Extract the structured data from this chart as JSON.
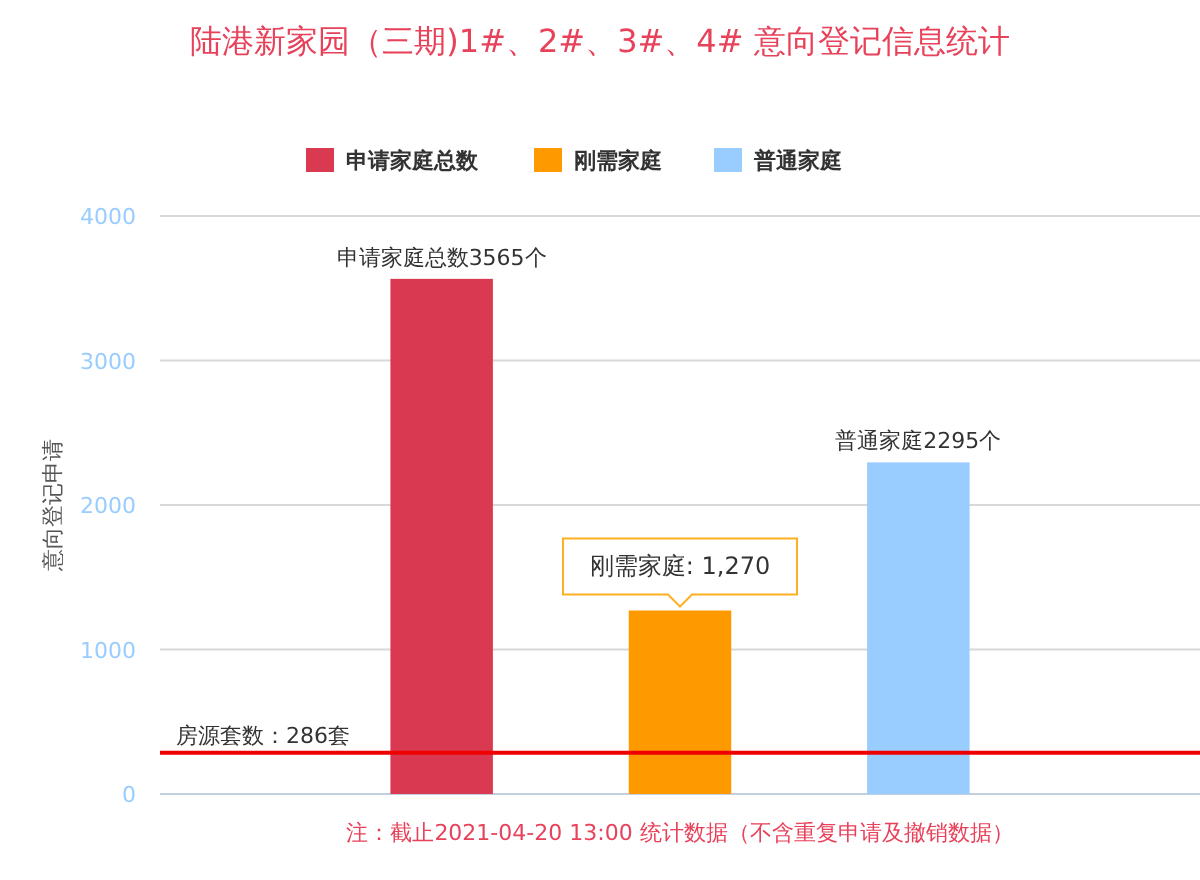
{
  "chart_data": {
    "type": "bar",
    "title": "陆港新家园（三期)1#、2#、3#、4# 意向登记信息统计",
    "ylabel": "意向登记申请",
    "categories": [
      null
    ],
    "series": [
      {
        "name": "申请家庭总数",
        "color": "#d93a52",
        "values": [
          3565
        ],
        "value_labels": [
          "申请家庭总数3565个"
        ]
      },
      {
        "name": "刚需家庭",
        "color": "#ff9900",
        "values": [
          1270
        ],
        "value_labels": [
          null
        ]
      },
      {
        "name": "普通家庭",
        "color": "#99ccff",
        "values": [
          2295
        ],
        "value_labels": [
          "普通家庭2295个"
        ]
      }
    ],
    "ylim": [
      0,
      4000
    ],
    "yticks": [
      0,
      1000,
      2000,
      3000,
      4000
    ],
    "grid": "y",
    "legend": "top",
    "ref_lines": [
      {
        "axis": "y",
        "value": 286,
        "label": "房源套数：286套",
        "color": "#ee0000"
      }
    ],
    "annotations": [
      {
        "text": "刚需家庭: 1,270",
        "y": 1270
      },
      "注：截止2021-04-20 13:00 统计数据（不含重复申请及撤销数据）"
    ]
  }
}
